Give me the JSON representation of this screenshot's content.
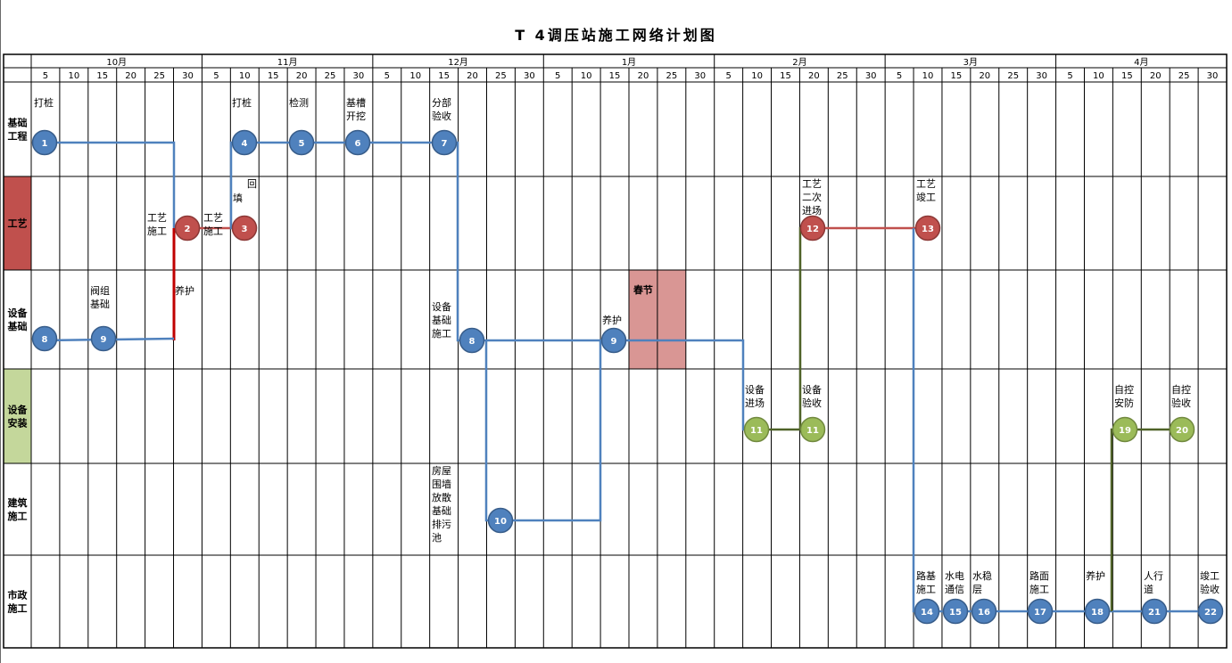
{
  "title": "T 4调压站施工网络计划图",
  "months": [
    {
      "name": "10月",
      "days": [
        "5",
        "10",
        "15",
        "20",
        "25",
        "30"
      ]
    },
    {
      "name": "11月",
      "days": [
        "5",
        "10",
        "15",
        "20",
        "25",
        "30"
      ]
    },
    {
      "name": "12月",
      "days": [
        "5",
        "10",
        "15",
        "20",
        "25",
        "30"
      ]
    },
    {
      "name": "1月",
      "days": [
        "5",
        "10",
        "15",
        "20",
        "25",
        "30"
      ]
    },
    {
      "name": "2月",
      "days": [
        "5",
        "10",
        "15",
        "20",
        "25",
        "30"
      ]
    },
    {
      "name": "3月",
      "days": [
        "5",
        "10",
        "15",
        "20",
        "25",
        "30"
      ]
    },
    {
      "name": "4月",
      "days": [
        "5",
        "10",
        "15",
        "20",
        "25",
        "30"
      ]
    }
  ],
  "rows": [
    {
      "label": [
        "基础",
        "工程"
      ],
      "color": "#ffffff"
    },
    {
      "label": [
        "工艺"
      ],
      "color": "#c0504d"
    },
    {
      "label": [
        "设备",
        "基础"
      ],
      "color": "#ffffff"
    },
    {
      "label": [
        "设备",
        "安装"
      ],
      "color": "#c4d79b"
    },
    {
      "label": [
        "建筑",
        "施工"
      ],
      "color": "#ffffff"
    },
    {
      "label": [
        "市政",
        "施工"
      ],
      "color": "#ffffff"
    }
  ],
  "holiday": {
    "label": "春节",
    "color": "#d99694"
  },
  "colors": {
    "blue": "#4f81bd",
    "red": "#c0504d",
    "green": "#9bbb59",
    "darkgreen": "#4f6228",
    "darkred": "#c00000"
  },
  "nodes": [
    {
      "id": "1",
      "color": "blue"
    },
    {
      "id": "2",
      "color": "red"
    },
    {
      "id": "3",
      "color": "red"
    },
    {
      "id": "4",
      "color": "blue"
    },
    {
      "id": "5",
      "color": "blue"
    },
    {
      "id": "6",
      "color": "blue"
    },
    {
      "id": "7",
      "color": "blue"
    },
    {
      "id": "8",
      "color": "blue"
    },
    {
      "id": "9",
      "color": "blue"
    },
    {
      "id": "8",
      "color": "blue"
    },
    {
      "id": "9",
      "color": "blue"
    },
    {
      "id": "10",
      "color": "blue"
    },
    {
      "id": "11",
      "color": "green"
    },
    {
      "id": "11",
      "color": "green"
    },
    {
      "id": "12",
      "color": "red"
    },
    {
      "id": "13",
      "color": "red"
    },
    {
      "id": "19",
      "color": "green"
    },
    {
      "id": "20",
      "color": "green"
    },
    {
      "id": "14",
      "color": "blue"
    },
    {
      "id": "15",
      "color": "blue"
    },
    {
      "id": "16",
      "color": "blue"
    },
    {
      "id": "17",
      "color": "blue"
    },
    {
      "id": "18",
      "color": "blue"
    },
    {
      "id": "21",
      "color": "blue"
    },
    {
      "id": "22",
      "color": "blue"
    }
  ],
  "labels": [
    [
      "打桩"
    ],
    [
      "打桩"
    ],
    [
      "检测"
    ],
    [
      "基槽",
      "开挖"
    ],
    [
      "分部",
      "验收"
    ],
    [
      "回"
    ],
    [
      "填"
    ],
    [
      "工艺",
      "施工"
    ],
    [
      "工艺",
      "施工"
    ],
    [
      "工艺",
      "二次",
      "进场"
    ],
    [
      "工艺",
      "竣工"
    ],
    [
      "阀组",
      "基础"
    ],
    [
      "养护"
    ],
    [
      "设备",
      "基础",
      "施工"
    ],
    [
      "养护"
    ],
    [
      "设备",
      "进场"
    ],
    [
      "设备",
      "验收"
    ],
    [
      "自控",
      "安防"
    ],
    [
      "自控",
      "验收"
    ],
    [
      "房屋",
      "围墙",
      "放散",
      "基础",
      "排污",
      "池"
    ],
    [
      "路基",
      "施工"
    ],
    [
      "水电",
      "通信"
    ],
    [
      "水稳",
      "层"
    ],
    [
      "路面",
      "施工"
    ],
    [
      "养护"
    ],
    [
      "人行",
      "道"
    ],
    [
      "竣工",
      "验收"
    ]
  ]
}
